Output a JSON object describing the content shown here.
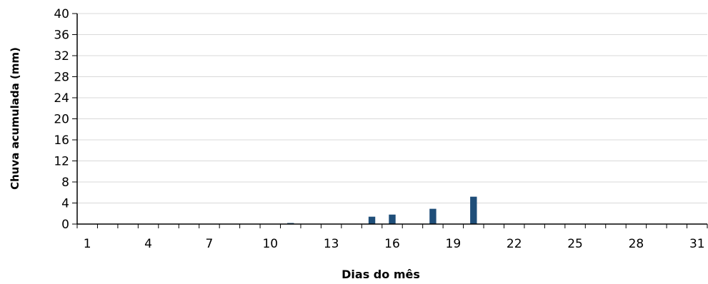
{
  "chart_data": {
    "type": "bar",
    "title": "",
    "xlabel": "Dias do mês",
    "ylabel": "Chuva acumulada (mm)",
    "ylim": [
      0,
      40
    ],
    "y_ticks": [
      0,
      4,
      8,
      12,
      16,
      20,
      24,
      28,
      32,
      36,
      40
    ],
    "x_ticks": [
      1,
      4,
      7,
      10,
      13,
      16,
      19,
      22,
      25,
      28,
      31
    ],
    "grid": "horizontal",
    "legend": "none",
    "bar_color": "#1F4E79",
    "categories": [
      1,
      2,
      3,
      4,
      5,
      6,
      7,
      8,
      9,
      10,
      11,
      12,
      13,
      14,
      15,
      16,
      17,
      18,
      19,
      20,
      21,
      22,
      23,
      24,
      25,
      26,
      27,
      28,
      29,
      30,
      31
    ],
    "values": [
      0,
      0,
      0,
      0,
      0,
      0,
      0,
      0,
      0,
      0,
      0.2,
      0,
      0,
      0,
      1.4,
      1.8,
      0,
      2.9,
      0,
      5.2,
      0,
      0,
      0,
      0,
      0,
      0,
      0,
      0,
      0,
      0,
      0
    ]
  }
}
